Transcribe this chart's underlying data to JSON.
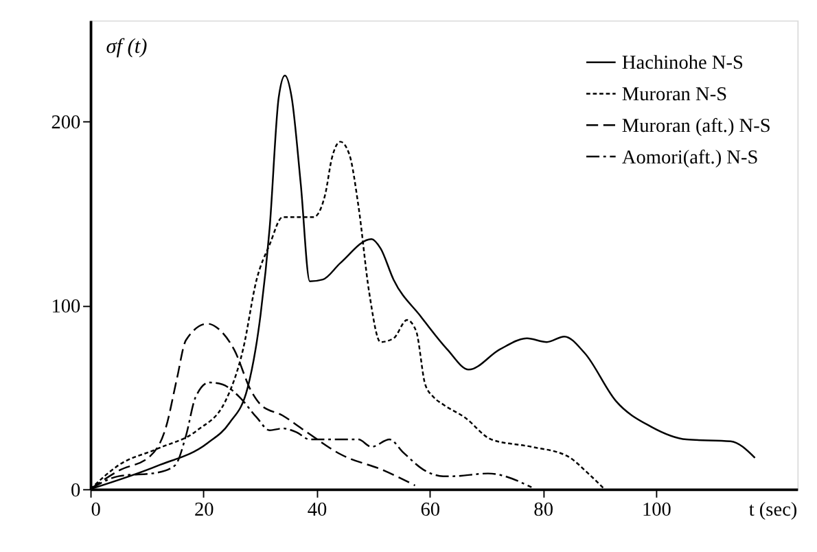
{
  "chart_data": {
    "type": "line",
    "xlabel": "t (sec)",
    "ylabel": "σf (t)",
    "xlim": [
      0,
      125
    ],
    "ylim": [
      0,
      255
    ],
    "xticks": [
      0,
      20,
      40,
      60,
      80,
      100
    ],
    "yticks": [
      0,
      100,
      200
    ],
    "grid": false,
    "legend": "top right",
    "marker": "none",
    "series": [
      {
        "name": "Hachinohe N-S",
        "color": "#000000",
        "line_style": "solid",
        "x": [
          0,
          11.9,
          20.7,
          24.6,
          27.8,
          30.1,
          31.7,
          33.3,
          34.4,
          35.6,
          37.2,
          38.8,
          41.1,
          44.2,
          49.7,
          51.3,
          53.6,
          58.4,
          63.1,
          66.9,
          72.4,
          77.2,
          80.7,
          83.8,
          87.4,
          92.9,
          99.1,
          105.4,
          113.2,
          117.5
        ],
        "values": [
          0,
          12.7,
          25,
          36,
          55,
          95,
          142,
          213,
          225,
          213,
          166,
          113,
          114,
          123,
          136,
          131,
          114,
          94,
          76,
          65,
          76,
          82,
          80,
          83,
          74,
          48,
          34,
          27,
          26,
          17
        ]
      },
      {
        "name": "Muroran N-S",
        "color": "#000000",
        "line_style": "dotted",
        "x": [
          0,
          5,
          11.9,
          18.9,
          23.9,
          27,
          29.4,
          31.7,
          34,
          39.5,
          41.5,
          42.7,
          44.2,
          45.8,
          47.4,
          49.3,
          51.3,
          53.6,
          56,
          57.6,
          59.2,
          60.7,
          62.4,
          66.2,
          70.9,
          78,
          84.3,
          88.2,
          90.9
        ],
        "values": [
          0,
          13,
          22,
          32,
          48,
          76,
          114,
          133,
          148,
          148,
          160,
          180,
          189,
          182,
          154,
          107,
          80,
          82,
          92,
          86,
          57,
          50,
          46,
          39,
          27,
          23,
          18,
          8,
          0
        ]
      },
      {
        "name": "Muroran (aft.) N-S",
        "color": "#000000",
        "line_style": "dashed",
        "x": [
          0,
          5,
          10.6,
          13.4,
          15.3,
          16.9,
          20.7,
          22.3,
          25.4,
          28.5,
          30.1,
          34,
          37.8,
          44.2,
          52,
          57.4
        ],
        "values": [
          0,
          10,
          18,
          34,
          60,
          81,
          90,
          88,
          76,
          53,
          46,
          40,
          32,
          19,
          10,
          2
        ]
      },
      {
        "name": "Aomori(aft.) N-S",
        "color": "#000000",
        "line_style": "dashdot",
        "x": [
          0,
          5,
          11.9,
          15,
          16.9,
          18.6,
          21,
          23.3,
          26.4,
          29.4,
          31.7,
          34,
          36.4,
          38.8,
          44.2,
          47.4,
          49.7,
          52.9,
          55.3,
          59.2,
          62.4,
          64,
          70.3,
          78
        ],
        "values": [
          0,
          7,
          9,
          13,
          29,
          50,
          58,
          57,
          50,
          39,
          32,
          33,
          31,
          27,
          27,
          27,
          23,
          27,
          20,
          10,
          7,
          7,
          8.5,
          1
        ]
      }
    ]
  }
}
